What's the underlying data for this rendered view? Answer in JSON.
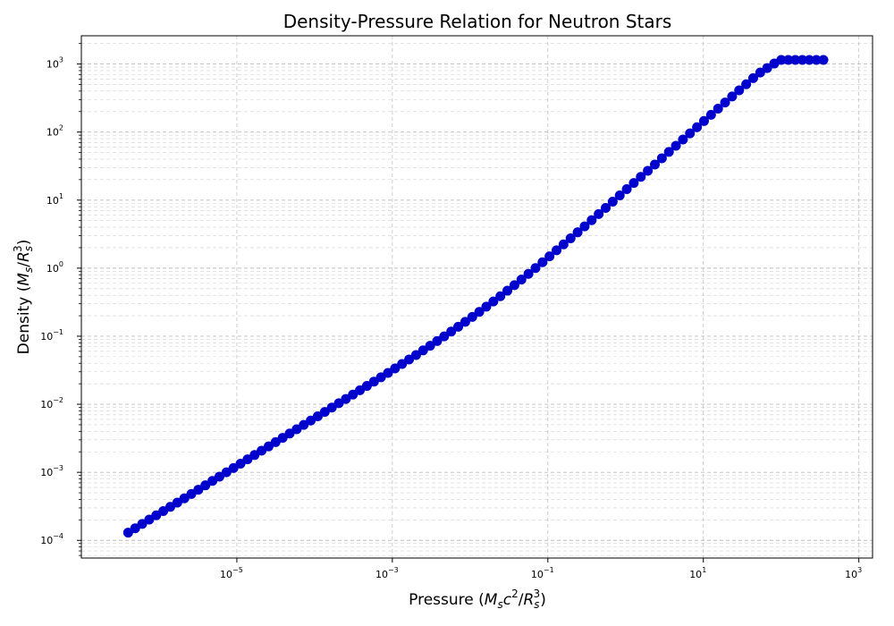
{
  "chart_data": {
    "type": "scatter",
    "title": "Density-Pressure Relation for Neutron Stars",
    "xlabel": {
      "text": "Pressure (",
      "symbol": "M",
      "sub": "s",
      "c": "c",
      "csup": "2",
      "slash": "/",
      "R": "R",
      "Rsub": "s",
      "Rsup": "3",
      "close": ")"
    },
    "ylabel": {
      "text": "Density (",
      "symbol": "M",
      "sub": "s",
      "slash": "/",
      "R": "R",
      "Rsub": "s",
      "Rsup": "3",
      "close": ")"
    },
    "x_scale": "log",
    "y_scale": "log",
    "xlim": [
      1e-07,
      1500
    ],
    "ylim": [
      5.5e-05,
      2600
    ],
    "x_ticks": [
      {
        "base": "10",
        "exp": "−5",
        "value": 1e-05
      },
      {
        "base": "10",
        "exp": "−3",
        "value": 0.001
      },
      {
        "base": "10",
        "exp": "−1",
        "value": 0.1
      },
      {
        "base": "10",
        "exp": "1",
        "value": 10
      },
      {
        "base": "10",
        "exp": "3",
        "value": 1000
      }
    ],
    "y_ticks": [
      {
        "base": "10",
        "exp": "−4",
        "value": 0.0001
      },
      {
        "base": "10",
        "exp": "−3",
        "value": 0.001
      },
      {
        "base": "10",
        "exp": "−2",
        "value": 0.01
      },
      {
        "base": "10",
        "exp": "−1",
        "value": 0.1
      },
      {
        "base": "10",
        "exp": "0",
        "value": 1
      },
      {
        "base": "10",
        "exp": "1",
        "value": 10
      },
      {
        "base": "10",
        "exp": "2",
        "value": 100
      },
      {
        "base": "10",
        "exp": "3",
        "value": 1000
      }
    ],
    "grid": true,
    "marker_color": "#0000cc",
    "line_color": "#0000cc",
    "series": [
      {
        "x": [
          4e-07,
          7.61e-07,
          1.45e-06,
          2.76e-06,
          5.25e-06,
          1e-05,
          1.9e-05,
          3.62e-05,
          6.89e-05,
          0.000131,
          0.00025,
          0.000475,
          0.000904,
          0.00172,
          0.00327,
          0.00623,
          0.0119,
          0.0226,
          0.0429,
          0.0817,
          0.155,
          0.296,
          0.563,
          1.07,
          2.04,
          3.88,
          7.38,
          14.0,
          26.7,
          50.9,
          96.8,
          184,
          350
        ],
        "y": [
          0.00013,
          0.000205,
          0.00032,
          0.0005,
          0.00079,
          0.00124,
          0.00195,
          0.00306,
          0.0048,
          0.00755,
          0.0119,
          0.0187,
          0.0295,
          0.047,
          0.076,
          0.125,
          0.21,
          0.36,
          0.64,
          1.17,
          2.18,
          4.1,
          7.8,
          15.0,
          28.5,
          55,
          105,
          200,
          380,
          720,
          1150,
          1150,
          1150
        ]
      }
    ]
  }
}
